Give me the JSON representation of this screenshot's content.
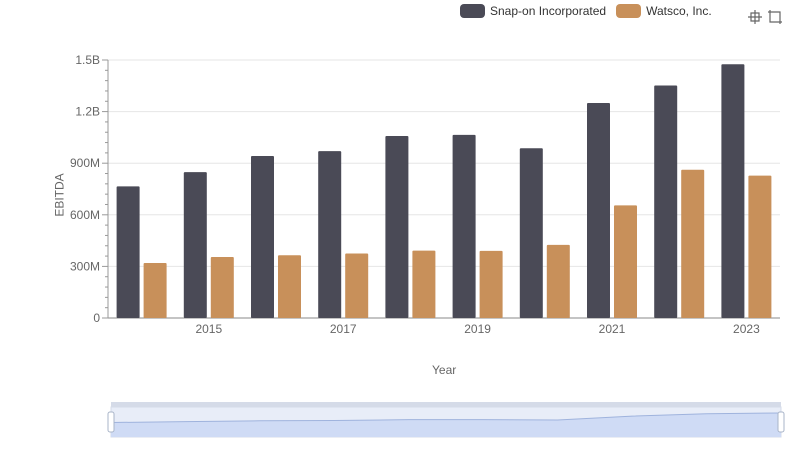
{
  "legend": {
    "items": [
      {
        "name": "Snap-on Incorporated",
        "color": "#4a4a56"
      },
      {
        "name": "Watsco, Inc.",
        "color": "#c8905a"
      }
    ]
  },
  "toolbox": {
    "icons": [
      "zoom-icon",
      "zoom-reset-icon"
    ]
  },
  "chart_data": {
    "type": "bar",
    "xlabel": "Year",
    "ylabel": "EBITDA",
    "ylim": [
      0,
      1500000000
    ],
    "yticks": [
      0,
      300000000,
      600000000,
      900000000,
      1200000000,
      1500000000
    ],
    "ytick_labels": [
      "0",
      "300M",
      "600M",
      "900M",
      "1.2B",
      "1.5B"
    ],
    "categories": [
      "2014",
      "2015",
      "2016",
      "2017",
      "2018",
      "2019",
      "2020",
      "2021",
      "2022",
      "2023"
    ],
    "xtick_labels_shown": [
      "2015",
      "2017",
      "2019",
      "2021",
      "2023"
    ],
    "series": [
      {
        "name": "Snap-on Incorporated",
        "color": "#4a4a56",
        "values": [
          765000000,
          848000000,
          942000000,
          970000000,
          1058000000,
          1065000000,
          987000000,
          1250000000,
          1352000000,
          1475000000
        ]
      },
      {
        "name": "Watsco, Inc.",
        "color": "#c8905a",
        "values": [
          320000000,
          355000000,
          365000000,
          375000000,
          392000000,
          390000000,
          425000000,
          655000000,
          862000000,
          828000000
        ]
      }
    ],
    "grid": true,
    "legend_position": "top-right",
    "datazoom": {
      "start_percent": 0,
      "end_percent": 100
    }
  }
}
